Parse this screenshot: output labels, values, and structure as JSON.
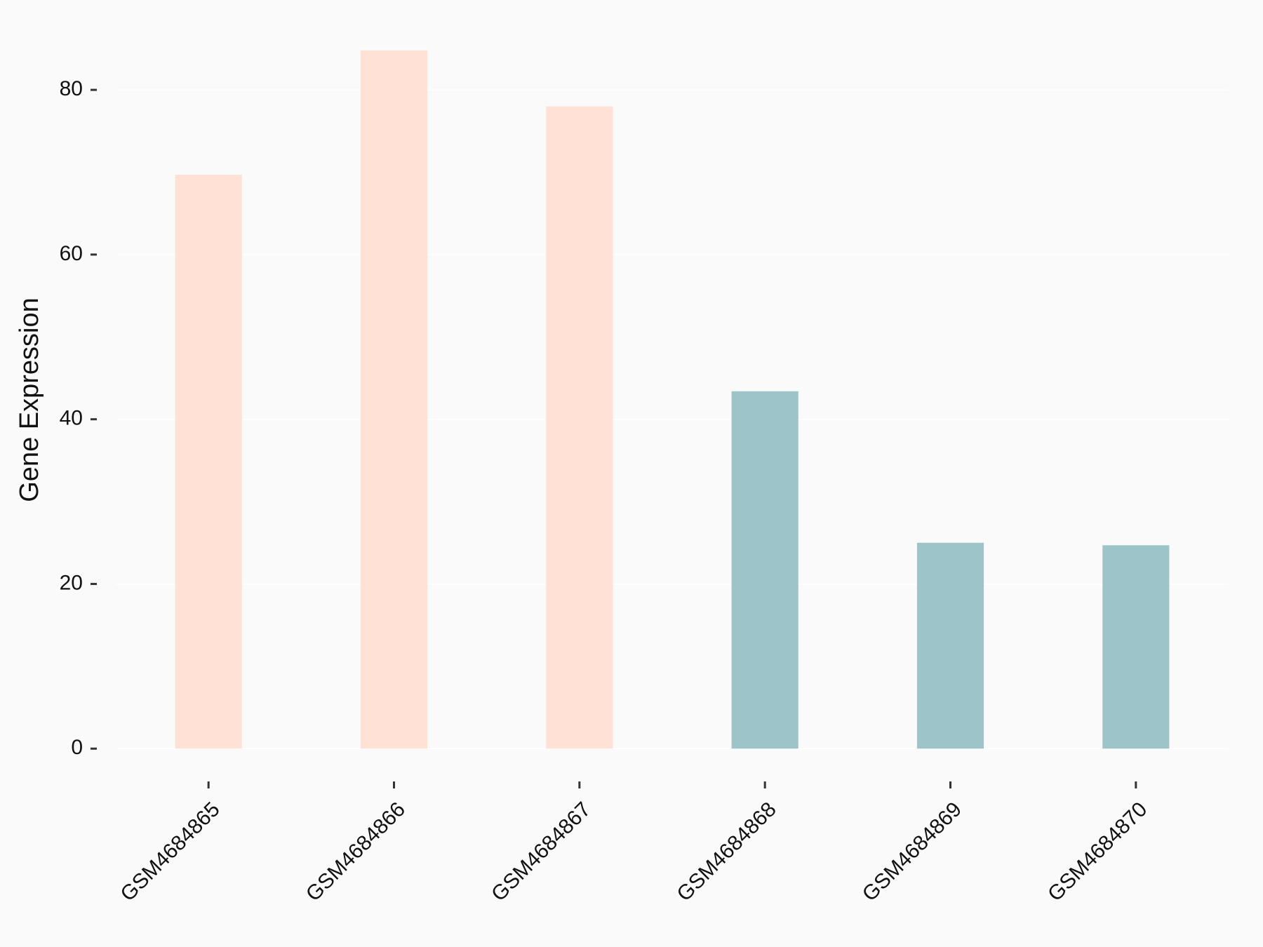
{
  "chart_data": {
    "type": "bar",
    "y_label": "Gene Expression",
    "categories": [
      "GSM4684865",
      "GSM4684866",
      "GSM4684867",
      "GSM4684868",
      "GSM4684869",
      "GSM4684870"
    ],
    "values": [
      69.7,
      84.8,
      78.0,
      43.4,
      25.0,
      24.7
    ],
    "colors": [
      "#ffe1d6",
      "#ffe1d6",
      "#ffe1d6",
      "#9dc4c8",
      "#9dc4c8",
      "#9dc4c8"
    ],
    "ylim": [
      -4.24,
      89.04
    ],
    "yticks": [
      0,
      20,
      40,
      60,
      80
    ],
    "grid": true
  }
}
